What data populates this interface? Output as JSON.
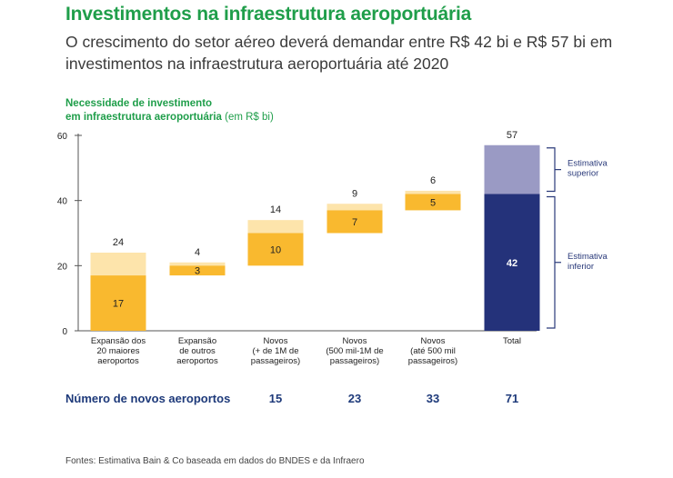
{
  "title": "Investimentos na infraestrutura aeroportuária",
  "subtitle": "O crescimento do setor aéreo deverá demandar entre R$ 42 bi e R$ 57 bi em investimentos na infraestrutura aeroportuária até 2020",
  "chart_heading": {
    "line1": "Necessidade de investimento",
    "line2": "em infraestrutura aeroportuária",
    "unit": "(em R$ bi)"
  },
  "colors": {
    "lower": "#f9b92f",
    "upper": "#fde4ab",
    "total_lower": "#24327a",
    "total_upper": "#9a9ac4",
    "title": "#1f9e4a",
    "count": "#1e3a7a"
  },
  "chart_data": {
    "type": "bar",
    "stacking": "waterfall",
    "ylim": [
      0,
      60
    ],
    "yticks": [
      0,
      20,
      40,
      60
    ],
    "grid": false,
    "categories": [
      [
        "Expansão dos",
        "20 maiores",
        "aeroportos"
      ],
      [
        "Expansão",
        "de outros",
        "aeroportos"
      ],
      [
        "Novos",
        "(+ de 1M de",
        "passageiros)"
      ],
      [
        "Novos",
        "(500 mil-1M de",
        "passageiros)"
      ],
      [
        "Novos",
        "(até 500 mil",
        "passageiros)"
      ],
      [
        "Total"
      ]
    ],
    "lower": [
      17,
      3,
      10,
      7,
      5,
      42
    ],
    "upper": [
      24,
      4,
      14,
      9,
      6,
      57
    ],
    "lower_labels": [
      "17",
      "3",
      "10",
      "7",
      "5",
      "42"
    ],
    "upper_labels": [
      "24",
      "4",
      "14",
      "9",
      "6",
      "57"
    ],
    "annotations": [
      {
        "text": [
          "Estimativa",
          "superior"
        ],
        "range": [
          42,
          57
        ]
      },
      {
        "text": [
          "Estimativa",
          "inferior"
        ],
        "range": [
          0,
          42
        ]
      }
    ]
  },
  "new_airports": {
    "label": "Número de novos aeroportos",
    "values": [
      "15",
      "23",
      "33",
      "71"
    ]
  },
  "source": "Fontes: Estimativa Bain & Co baseada em dados do BNDES e da Infraero"
}
